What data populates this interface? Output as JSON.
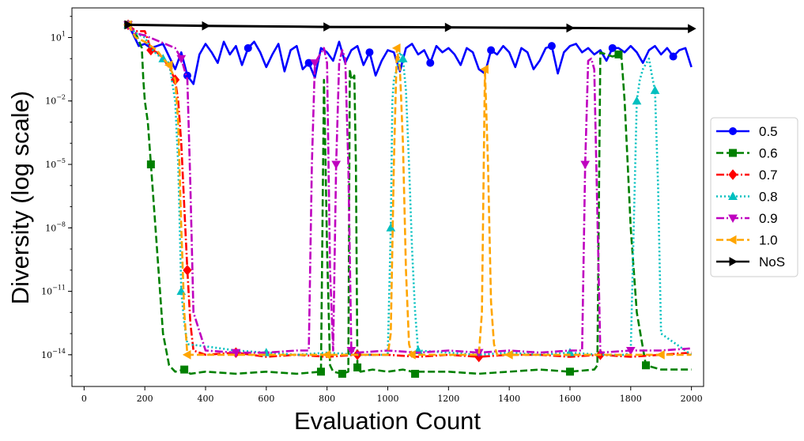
{
  "chart_data": {
    "type": "line",
    "xlabel": "Evaluation Count",
    "ylabel": "Diversity (log scale)",
    "x_ticks": [
      0,
      200,
      400,
      600,
      800,
      1000,
      1200,
      1400,
      1600,
      1800,
      2000
    ],
    "y_ticks": [
      {
        "exp": 1,
        "label": "10",
        "sup": "1"
      },
      {
        "exp": -2,
        "label": "10",
        "sup": "−2"
      },
      {
        "exp": -5,
        "label": "10",
        "sup": "−5"
      },
      {
        "exp": -8,
        "label": "10",
        "sup": "−8"
      },
      {
        "exp": -11,
        "label": "10",
        "sup": "−11"
      },
      {
        "exp": -14,
        "label": "10",
        "sup": "−14"
      }
    ],
    "xlim": [
      -40,
      2040
    ],
    "ylim_log10": [
      -15.5,
      2.4
    ],
    "y_scale": "log",
    "grid": false,
    "legend_position": "right-outside",
    "series": [
      {
        "name": "0.5",
        "color": "#0000ff",
        "dash": "solid",
        "marker": "circle",
        "x": [
          145,
          160,
          180,
          200,
          220,
          240,
          260,
          280,
          300,
          320,
          340,
          360,
          380,
          400,
          420,
          440,
          460,
          480,
          500,
          520,
          540,
          560,
          580,
          600,
          620,
          640,
          660,
          680,
          700,
          720,
          740,
          760,
          780,
          800,
          820,
          840,
          860,
          880,
          900,
          920,
          940,
          960,
          980,
          1000,
          1020,
          1040,
          1060,
          1080,
          1100,
          1120,
          1140,
          1160,
          1180,
          1200,
          1220,
          1240,
          1260,
          1280,
          1300,
          1320,
          1340,
          1360,
          1380,
          1400,
          1420,
          1440,
          1460,
          1480,
          1500,
          1520,
          1540,
          1560,
          1580,
          1600,
          1620,
          1640,
          1660,
          1680,
          1700,
          1720,
          1740,
          1760,
          1780,
          1800,
          1820,
          1840,
          1860,
          1880,
          1900,
          1920,
          1940,
          1960,
          1980,
          2000
        ],
        "y_log10": [
          1.6,
          1.2,
          0.6,
          0.7,
          0.5,
          0.6,
          0.7,
          0.1,
          -0.5,
          0.3,
          -0.8,
          -1.2,
          0.2,
          0.7,
          0.3,
          -0.2,
          0.8,
          0.2,
          0.6,
          -0.3,
          0.5,
          0.8,
          0.3,
          -0.4,
          0.2,
          0.7,
          -0.6,
          0.4,
          0.6,
          -0.5,
          -0.2,
          -0.9,
          0.5,
          0.3,
          -0.1,
          0.8,
          -0.2,
          0.4,
          0.6,
          -0.3,
          0.3,
          -0.8,
          -0.1,
          0.4,
          0.3,
          -0.6,
          0.5,
          0.7,
          0.2,
          0.4,
          -0.2,
          0.6,
          0.3,
          0.5,
          0.2,
          -0.3,
          0.5,
          0.3,
          -0.5,
          -0.7,
          0.4,
          0.2,
          0.6,
          0.3,
          -0.4,
          0.5,
          0.3,
          -0.5,
          -0.1,
          0.5,
          0.6,
          -0.7,
          0.3,
          0.6,
          0.7,
          0.3,
          0.5,
          0.2,
          0.4,
          -0.1,
          0.5,
          0.5,
          0.3,
          0.6,
          0.3,
          -0.2,
          0.4,
          0.6,
          0.2,
          0.5,
          0.1,
          0.4,
          0.5,
          -0.4
        ]
      },
      {
        "name": "0.6",
        "color": "#008000",
        "dash": "dashed",
        "marker": "square",
        "x": [
          145,
          170,
          190,
          195,
          200,
          210,
          220,
          240,
          250,
          260,
          280,
          300,
          330,
          350,
          400,
          500,
          600,
          700,
          780,
          790,
          795,
          800,
          810,
          820,
          850,
          870,
          875,
          880,
          890,
          895,
          900,
          910,
          950,
          1000,
          1050,
          1080,
          1090,
          1100,
          1200,
          1300,
          1400,
          1500,
          1600,
          1680,
          1690,
          1700,
          1720,
          1740,
          1760,
          1770,
          1780,
          1790,
          1800,
          1820,
          1850,
          1900,
          2000
        ],
        "y_log10": [
          1.6,
          1.2,
          0.5,
          -1.0,
          -2.0,
          -3.0,
          -5.0,
          -9.0,
          -11.0,
          -13.0,
          -14.5,
          -14.8,
          -14.7,
          -14.9,
          -14.8,
          -14.9,
          -14.8,
          -14.9,
          -14.8,
          -1.0,
          -5.0,
          -9.0,
          -14.5,
          -14.8,
          -14.9,
          -14.8,
          -0.5,
          -1.0,
          -0.8,
          -5.0,
          -14.6,
          -14.8,
          -14.7,
          -14.8,
          -14.7,
          -14.8,
          -14.9,
          -14.8,
          -14.8,
          -14.9,
          -14.8,
          -14.7,
          -14.8,
          -14.7,
          -14.5,
          0.3,
          0.2,
          0.1,
          0.2,
          0.0,
          -2.0,
          -5.0,
          -8.0,
          -12.0,
          -14.5,
          -14.7,
          -14.7
        ]
      },
      {
        "name": "0.7",
        "color": "#ff0000",
        "dash": "dashdot",
        "marker": "diamond",
        "x": [
          145,
          170,
          200,
          210,
          220,
          240,
          260,
          280,
          300,
          310,
          320,
          330,
          340,
          350,
          360,
          400,
          500,
          600,
          700,
          800,
          900,
          1000,
          1100,
          1200,
          1300,
          1400,
          1500,
          1600,
          1700,
          1800,
          1900,
          2000
        ],
        "y_log10": [
          1.6,
          1.3,
          1.3,
          0.9,
          0.4,
          0.3,
          0.0,
          -0.4,
          -1.0,
          -2.0,
          -4.0,
          -7.0,
          -10.0,
          -12.5,
          -13.8,
          -14.0,
          -13.9,
          -14.1,
          -14.0,
          -14.1,
          -14.0,
          -14.0,
          -14.1,
          -14.0,
          -14.1,
          -14.0,
          -14.0,
          -14.1,
          -14.0,
          -14.1,
          -14.0,
          -13.9
        ]
      },
      {
        "name": "0.8",
        "color": "#00bfbf",
        "dash": "dotted",
        "marker": "triangle-up",
        "x": [
          145,
          170,
          200,
          220,
          240,
          260,
          280,
          300,
          310,
          315,
          320,
          330,
          340,
          400,
          500,
          600,
          700,
          800,
          900,
          1000,
          1010,
          1015,
          1020,
          1030,
          1040,
          1050,
          1060,
          1070,
          1080,
          1090,
          1100,
          1200,
          1300,
          1400,
          1500,
          1600,
          1700,
          1780,
          1800,
          1810,
          1820,
          1830,
          1840,
          1860,
          1870,
          1880,
          1890,
          1900,
          2000
        ],
        "y_log10": [
          1.6,
          1.2,
          1.0,
          0.5,
          0.2,
          0.0,
          -0.2,
          -2.0,
          -5.0,
          -8.0,
          -11.0,
          -12.5,
          -13.5,
          -13.6,
          -13.8,
          -13.9,
          -14.0,
          -13.9,
          -14.0,
          -14.0,
          -8.0,
          -2.0,
          -1.0,
          -0.5,
          0.3,
          0.0,
          -1.5,
          -5.0,
          -9.0,
          -12.0,
          -13.8,
          -13.9,
          -14.0,
          -13.9,
          -14.0,
          -13.9,
          -14.0,
          -14.0,
          -13.9,
          -8.0,
          -2.0,
          -1.0,
          -0.5,
          0.0,
          -0.8,
          -1.5,
          -6.0,
          -13.0,
          -14.0
        ]
      },
      {
        "name": "0.9",
        "color": "#bf00bf",
        "dash": "dashdot",
        "marker": "triangle-down",
        "x": [
          145,
          170,
          200,
          250,
          300,
          320,
          340,
          350,
          360,
          400,
          500,
          600,
          700,
          740,
          750,
          760,
          790,
          800,
          810,
          820,
          830,
          840,
          850,
          860,
          870,
          880,
          900,
          1000,
          1100,
          1200,
          1300,
          1400,
          1500,
          1600,
          1640,
          1650,
          1660,
          1670,
          1680,
          1700,
          1800,
          1900,
          2000
        ],
        "y_log10": [
          1.6,
          1.2,
          1.1,
          0.8,
          0.5,
          0.0,
          -1.0,
          -6.0,
          -12.0,
          -13.8,
          -13.9,
          -13.9,
          -13.8,
          -13.8,
          -5.0,
          -0.2,
          0.5,
          -0.2,
          -10.0,
          -13.8,
          -5.0,
          -0.2,
          0.4,
          0.0,
          -5.0,
          -13.8,
          -13.9,
          -13.8,
          -13.9,
          -13.8,
          -13.9,
          -13.8,
          -13.9,
          -13.8,
          -13.8,
          -5.0,
          -0.1,
          0.0,
          -0.5,
          -13.9,
          -13.8,
          -13.8,
          -13.7
        ]
      },
      {
        "name": "1.0",
        "color": "#ffa500",
        "dash": "dashed",
        "marker": "triangle-left",
        "x": [
          145,
          170,
          200,
          240,
          260,
          280,
          300,
          310,
          320,
          330,
          340,
          400,
          500,
          600,
          700,
          800,
          900,
          1000,
          1010,
          1020,
          1030,
          1040,
          1050,
          1060,
          1070,
          1080,
          1100,
          1200,
          1300,
          1310,
          1320,
          1330,
          1340,
          1350,
          1360,
          1400,
          1500,
          1600,
          1700,
          1800,
          1900,
          2000
        ],
        "y_log10": [
          1.6,
          1.0,
          0.8,
          0.4,
          0.0,
          -0.3,
          -1.0,
          -3.0,
          -8.0,
          -12.0,
          -14.0,
          -14.0,
          -14.0,
          -14.0,
          -14.0,
          -14.0,
          -14.0,
          -14.0,
          -13.0,
          -5.0,
          0.5,
          -0.5,
          -4.0,
          -10.0,
          -13.5,
          -14.0,
          -14.0,
          -14.0,
          -14.0,
          -12.0,
          -0.5,
          -5.0,
          -11.5,
          -13.5,
          -14.0,
          -14.0,
          -14.0,
          -14.0,
          -14.0,
          -14.0,
          -14.0,
          -14.0
        ]
      },
      {
        "name": "NoS",
        "color": "#000000",
        "dash": "solid",
        "marker": "triangle-right",
        "x": [
          145,
          400,
          800,
          1200,
          1600,
          2000
        ],
        "y_log10": [
          1.6,
          1.55,
          1.5,
          1.48,
          1.45,
          1.42
        ]
      }
    ]
  }
}
